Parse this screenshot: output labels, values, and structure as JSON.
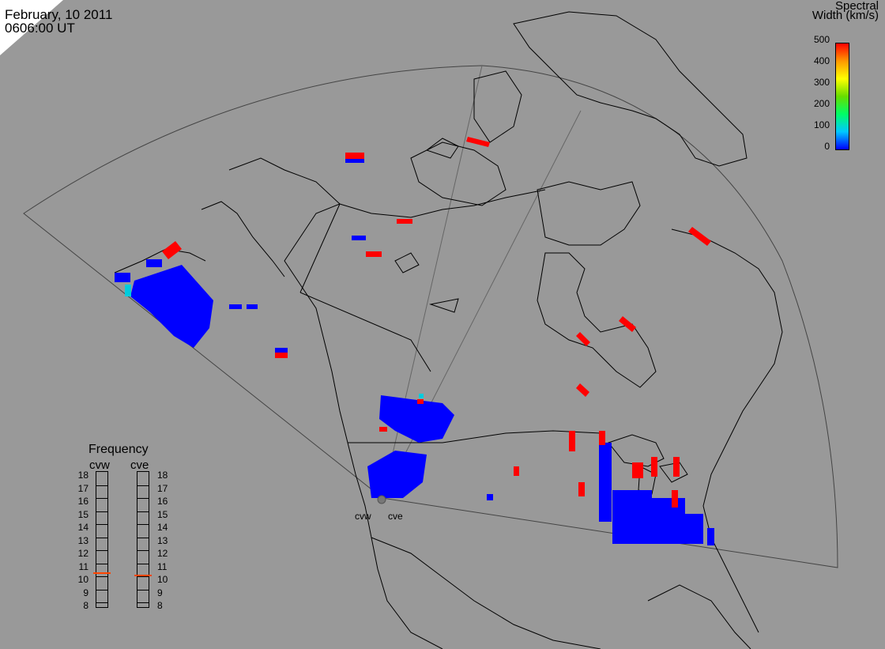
{
  "header": {
    "date": "February, 10 2011",
    "time": "0606:00 UT"
  },
  "colorbar": {
    "title_line1": "Spectral",
    "title_line2": "Width (km/s)",
    "ticks": [
      "500",
      "400",
      "300",
      "200",
      "100",
      "0"
    ],
    "range": [
      0,
      500
    ],
    "colors": [
      "#0000ff",
      "#00c8ff",
      "#00ff66",
      "#66dd00",
      "#ffff00",
      "#ff9900",
      "#ff0000"
    ]
  },
  "frequency": {
    "title": "Frequency",
    "radars": [
      {
        "name": "cvw",
        "value_mhz": 10.8
      },
      {
        "name": "cve",
        "value_mhz": 10.6
      }
    ],
    "scale": [
      "18",
      "17",
      "16",
      "15",
      "14",
      "13",
      "12",
      "11",
      "10",
      "9",
      "8"
    ]
  },
  "sites": [
    "cvw",
    "cve"
  ],
  "colors": {
    "background": "#999999",
    "coastline": "#000000",
    "fov": "#444444",
    "low_width": "#0000ff",
    "high_width": "#ff0000",
    "mid_width": "#0055ee",
    "cyan": "#00ccdd"
  }
}
